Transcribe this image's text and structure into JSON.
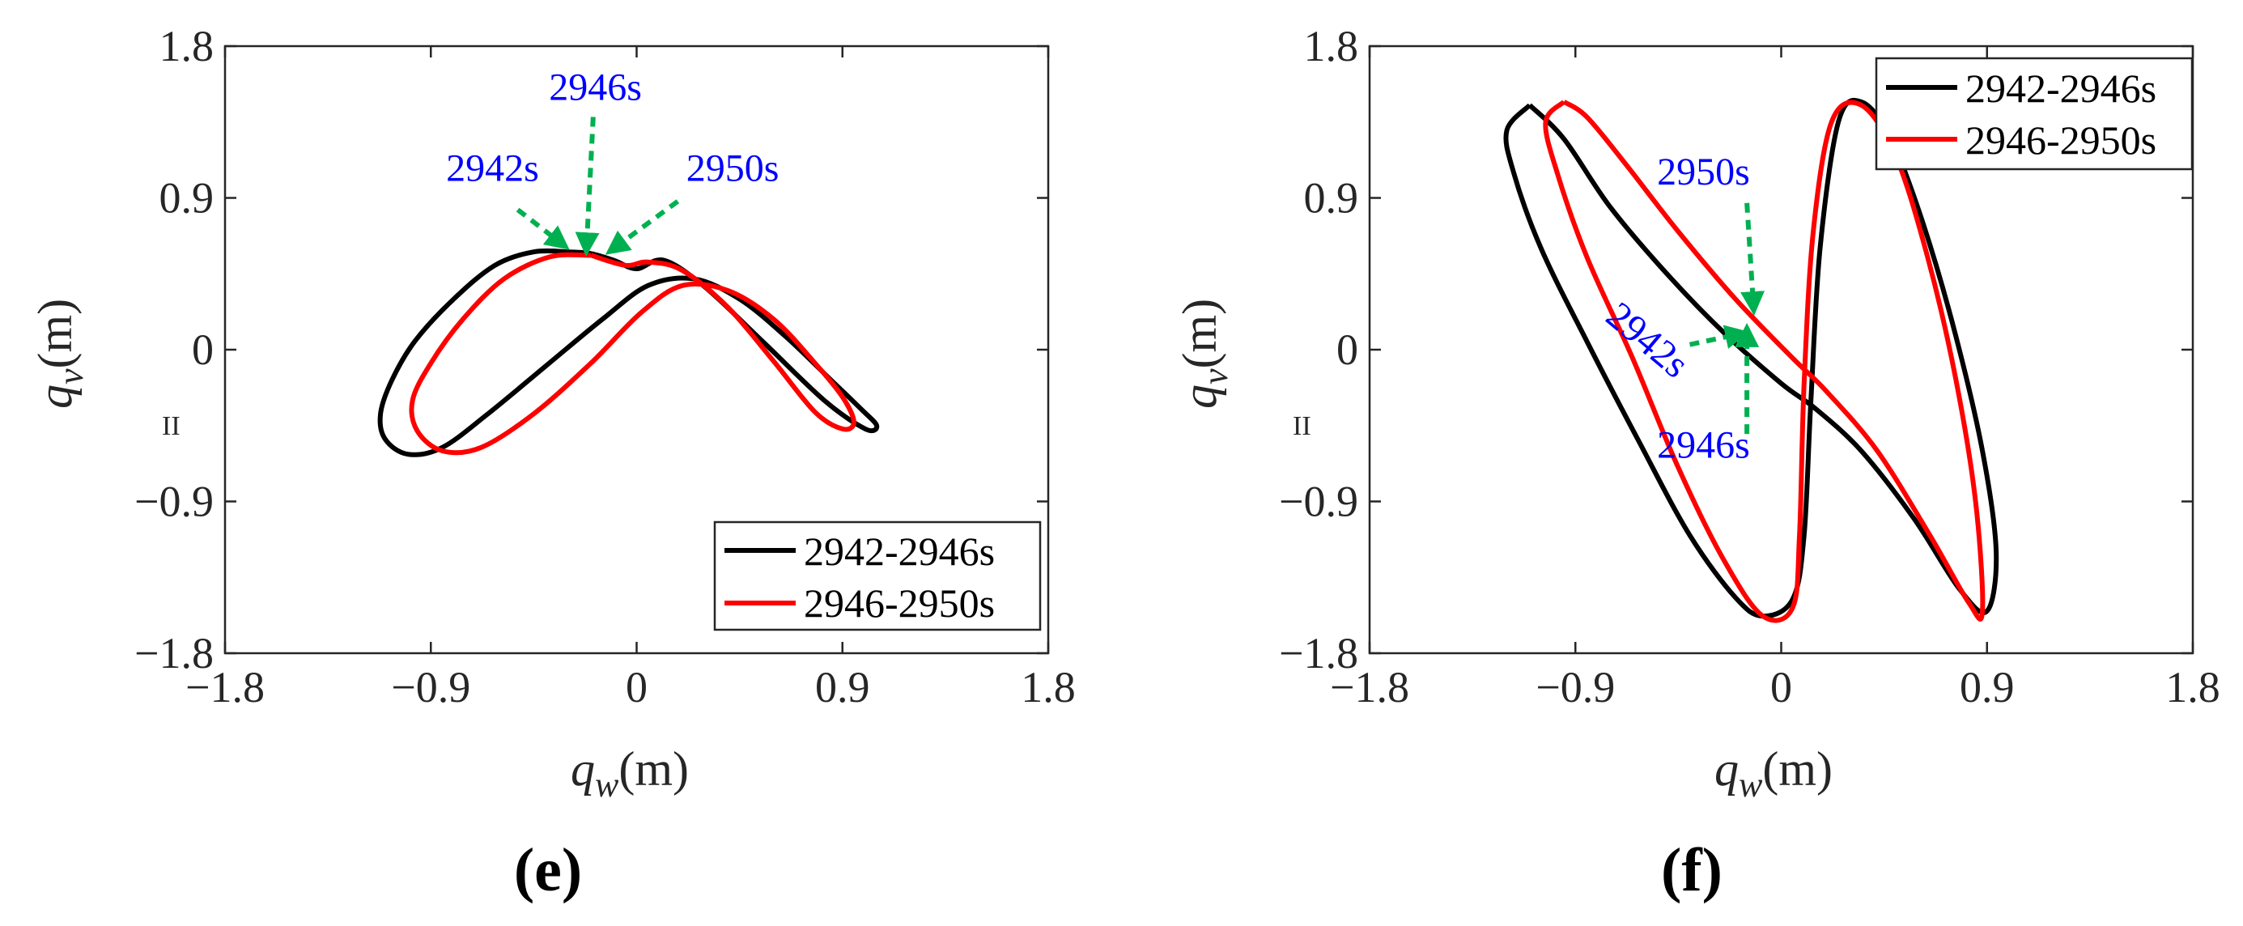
{
  "colors": {
    "series_1": "#000000",
    "series_2": "#ff0000",
    "annotation_text": "#0000ff",
    "annotation_arrow": "#00b050",
    "axis": "#262626"
  },
  "chart_data": [
    {
      "id": "e",
      "type": "line",
      "panel_label": "(e)",
      "xlabel": {
        "symbol": "q",
        "subscript": "w",
        "unit": "(m)"
      },
      "ylabel": {
        "symbol": "q",
        "subscript": "v",
        "unit": "(m)"
      },
      "xlim": [
        -1.8,
        1.8
      ],
      "ylim": [
        -1.8,
        1.8
      ],
      "xticks": [
        -1.8,
        -0.9,
        0,
        0.9,
        1.8
      ],
      "yticks": [
        -1.8,
        -0.9,
        0,
        0.9,
        1.8
      ],
      "xtick_labels": [
        "−1.8",
        "−0.9",
        "0",
        "0.9",
        "1.8"
      ],
      "ytick_labels": [
        "−1.8",
        "−0.9",
        "0",
        "0.9",
        "1.8"
      ],
      "stray_mark": "II",
      "legend_position": "bottom-right",
      "series": [
        {
          "name": "2942-2946s",
          "color": "#000000",
          "x": [
            -0.3,
            -0.45,
            -0.62,
            -0.8,
            -0.97,
            -1.07,
            -1.12,
            -1.1,
            -1.0,
            -0.85,
            -0.65,
            -0.4,
            -0.15,
            0.05,
            0.25,
            0.45,
            0.65,
            0.85,
            0.98,
            1.05,
            1.0,
            0.82,
            0.55,
            0.3,
            0.12,
            0.0,
            -0.1,
            -0.2,
            -0.3
          ],
          "y": [
            0.58,
            0.58,
            0.5,
            0.3,
            0.05,
            -0.18,
            -0.38,
            -0.53,
            -0.62,
            -0.58,
            -0.38,
            -0.1,
            0.18,
            0.38,
            0.42,
            0.3,
            0.08,
            -0.18,
            -0.35,
            -0.45,
            -0.47,
            -0.3,
            0.05,
            0.37,
            0.53,
            0.48,
            0.53,
            0.57,
            0.58
          ]
        },
        {
          "name": "2946-2950s",
          "color": "#ff0000",
          "x": [
            -0.2,
            -0.38,
            -0.58,
            -0.76,
            -0.9,
            -0.98,
            -0.96,
            -0.85,
            -0.68,
            -0.45,
            -0.2,
            0.02,
            0.2,
            0.4,
            0.6,
            0.78,
            0.9,
            0.95,
            0.9,
            0.78,
            0.6,
            0.4,
            0.2,
            0.05,
            -0.05,
            -0.2
          ],
          "y": [
            0.56,
            0.55,
            0.42,
            0.18,
            -0.08,
            -0.3,
            -0.48,
            -0.6,
            -0.58,
            -0.38,
            -0.08,
            0.22,
            0.38,
            0.35,
            0.18,
            -0.08,
            -0.28,
            -0.43,
            -0.47,
            -0.37,
            -0.07,
            0.25,
            0.47,
            0.52,
            0.5,
            0.56
          ]
        }
      ],
      "annotations": [
        {
          "text": "2942s",
          "x": -0.63,
          "y": 1.0
        },
        {
          "text": "2946s",
          "x": -0.18,
          "y": 1.48
        },
        {
          "text": "2950s",
          "x": 0.42,
          "y": 1.0
        }
      ],
      "arrows": [
        {
          "from": [
            -0.52,
            0.83
          ],
          "to": [
            -0.31,
            0.61
          ]
        },
        {
          "from": [
            -0.19,
            1.38
          ],
          "to": [
            -0.22,
            0.58
          ]
        },
        {
          "from": [
            0.18,
            0.88
          ],
          "to": [
            -0.12,
            0.58
          ]
        }
      ]
    },
    {
      "id": "f",
      "type": "line",
      "panel_label": "(f)",
      "xlabel": {
        "symbol": "q",
        "subscript": "w",
        "unit": "(m)"
      },
      "ylabel": {
        "symbol": "q",
        "subscript": "v",
        "unit": "(m)"
      },
      "xlim": [
        -1.8,
        1.8
      ],
      "ylim": [
        -1.8,
        1.8
      ],
      "xticks": [
        -1.8,
        -0.9,
        0,
        0.9,
        1.8
      ],
      "yticks": [
        -1.8,
        -0.9,
        0,
        0.9,
        1.8
      ],
      "xtick_labels": [
        "−1.8",
        "−0.9",
        "0",
        "0.9",
        "1.8"
      ],
      "ytick_labels": [
        "−1.8",
        "−0.9",
        "0",
        "0.9",
        "1.8"
      ],
      "stray_mark": "II",
      "legend_position": "top-right",
      "series": [
        {
          "name": "2942-2946s",
          "color": "#000000",
          "x": [
            -1.1,
            -1.2,
            -1.17,
            -1.05,
            -0.85,
            -0.62,
            -0.4,
            -0.2,
            -0.08,
            0.05,
            0.1,
            0.13,
            0.17,
            0.25,
            0.35,
            0.48,
            0.62,
            0.76,
            0.88,
            0.94,
            0.9,
            0.78,
            0.58,
            0.35,
            0.15,
            0.0,
            -0.25,
            -0.5,
            -0.75,
            -0.95,
            -1.1
          ],
          "y": [
            1.45,
            1.3,
            1.05,
            0.6,
            0.05,
            -0.55,
            -1.1,
            -1.47,
            -1.58,
            -1.48,
            -1.1,
            -0.3,
            0.6,
            1.35,
            1.47,
            1.25,
            0.75,
            0.1,
            -0.6,
            -1.2,
            -1.55,
            -1.42,
            -1.0,
            -0.6,
            -0.35,
            -0.2,
            0.1,
            0.45,
            0.85,
            1.25,
            1.45
          ]
        },
        {
          "name": "2946-2950s",
          "color": "#ff0000",
          "x": [
            -0.95,
            -1.03,
            -0.98,
            -0.85,
            -0.65,
            -0.45,
            -0.25,
            -0.08,
            0.05,
            0.08,
            0.1,
            0.14,
            0.22,
            0.35,
            0.5,
            0.64,
            0.76,
            0.85,
            0.88,
            0.82,
            0.65,
            0.42,
            0.2,
            0.05,
            -0.2,
            -0.45,
            -0.68,
            -0.85,
            -0.95
          ],
          "y": [
            1.47,
            1.35,
            1.05,
            0.55,
            -0.05,
            -0.7,
            -1.25,
            -1.58,
            -1.53,
            -1.1,
            -0.2,
            0.7,
            1.35,
            1.45,
            1.15,
            0.55,
            -0.15,
            -0.9,
            -1.55,
            -1.5,
            -1.1,
            -0.6,
            -0.25,
            -0.05,
            0.3,
            0.7,
            1.1,
            1.38,
            1.47
          ]
        }
      ],
      "annotations": [
        {
          "text": "2950s",
          "x": -0.34,
          "y": 0.98
        },
        {
          "text": "2942s",
          "x": -0.62,
          "y": 0.0
        },
        {
          "text": "2946s",
          "x": -0.34,
          "y": -0.64
        }
      ],
      "arrows": [
        {
          "from": [
            -0.15,
            0.87
          ],
          "to": [
            -0.12,
            0.23
          ]
        },
        {
          "from": [
            -0.4,
            0.03
          ],
          "to": [
            -0.16,
            0.1
          ]
        },
        {
          "from": [
            -0.15,
            -0.5
          ],
          "to": [
            -0.15,
            0.13
          ]
        }
      ]
    }
  ]
}
